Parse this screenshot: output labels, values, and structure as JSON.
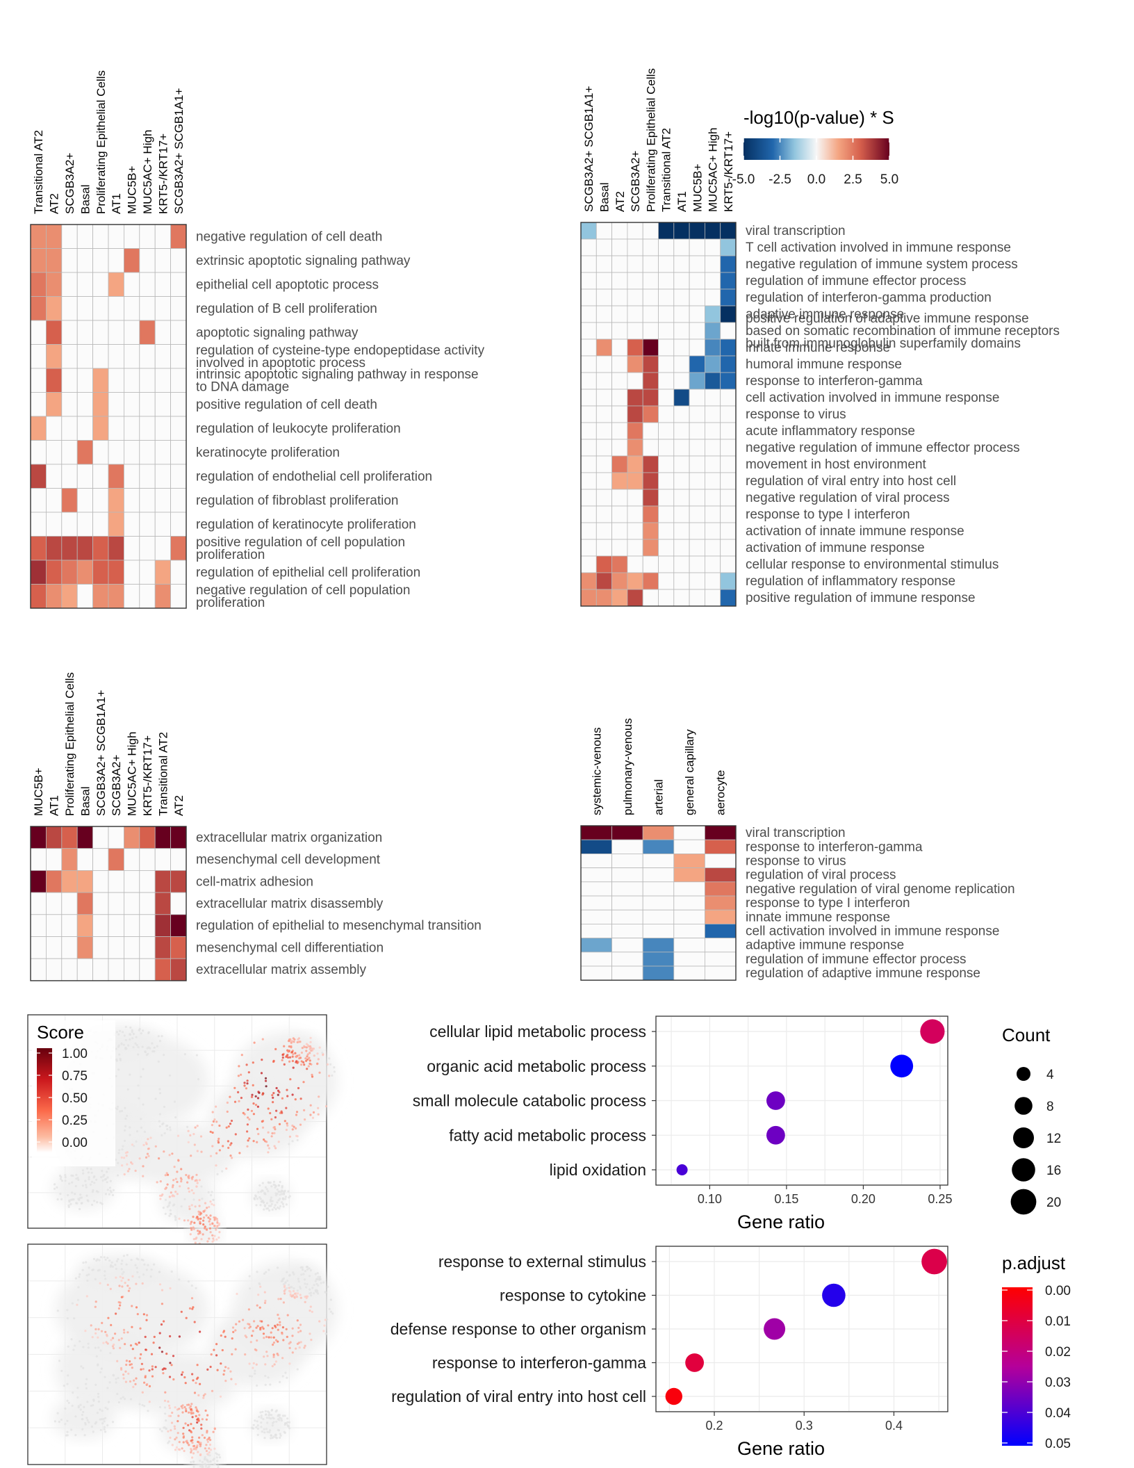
{
  "chart_data": [
    {
      "id": "hm1",
      "type": "heatmap",
      "columns": [
        "Transitional AT2",
        "AT2",
        "SCGB3A2+",
        "Basal",
        "Proliferating Epithelial Cells",
        "AT1",
        "MUC5B+",
        "MUC5AC+ High",
        "KRT5-/KRT17+",
        "SCGB3A2+ SCGB1A1+"
      ],
      "rows": [
        "negative regulation of cell death",
        "extrinsic apoptotic signaling pathway",
        "epithelial cell apoptotic process",
        "regulation of B cell proliferation",
        "apoptotic signaling pathway",
        "regulation of cysteine-type endopeptidase activity involved in apoptotic process",
        "intrinsic apoptotic signaling pathway in response to DNA damage",
        "positive regulation of cell death",
        "regulation of leukocyte proliferation",
        "keratinocyte proliferation",
        "regulation of endothelial cell proliferation",
        "regulation of fibroblast proliferation",
        "regulation of keratinocyte proliferation",
        "positive regulation of cell population proliferation",
        "regulation of epithelial cell proliferation",
        "negative regulation of cell population proliferation"
      ],
      "values": [
        [
          2,
          2,
          0,
          0,
          0,
          0,
          0,
          0,
          0,
          2.5
        ],
        [
          2,
          2,
          0,
          0,
          0,
          0,
          2.5,
          0,
          0,
          0
        ],
        [
          2.5,
          2,
          0,
          0,
          0,
          1.5,
          0,
          0,
          0,
          0
        ],
        [
          2.5,
          1.5,
          0,
          0,
          0,
          0,
          0,
          0,
          0,
          0
        ],
        [
          0,
          3,
          0,
          0,
          0,
          0,
          0,
          2.5,
          0,
          0
        ],
        [
          0,
          1.5,
          0,
          0,
          0,
          0,
          0,
          0,
          0,
          0
        ],
        [
          0,
          3,
          0,
          0,
          1.5,
          0,
          0,
          0,
          0,
          0
        ],
        [
          0,
          1.5,
          0,
          0,
          1.5,
          0,
          0,
          0,
          0,
          0
        ],
        [
          1.5,
          0,
          0,
          0,
          1.5,
          0,
          0,
          0,
          0,
          0
        ],
        [
          0,
          0,
          0,
          2.5,
          0,
          0,
          0,
          0,
          0,
          0
        ],
        [
          3.5,
          0,
          0,
          0,
          0,
          2.5,
          0,
          0,
          0,
          0
        ],
        [
          0,
          0,
          2.5,
          0,
          0,
          1.5,
          0,
          0,
          0,
          0
        ],
        [
          0,
          0,
          0,
          0,
          0,
          1.5,
          0,
          0,
          0,
          0
        ],
        [
          3,
          3.5,
          3.5,
          3.5,
          3,
          3.5,
          0,
          0,
          0,
          2.5
        ],
        [
          4,
          3,
          2.5,
          2,
          3,
          3,
          0,
          0,
          1.5,
          0
        ],
        [
          3,
          2,
          1.5,
          0,
          2,
          2,
          0,
          0,
          2,
          0
        ]
      ]
    },
    {
      "id": "hm2",
      "type": "heatmap",
      "columns": [
        "SCGB3A2+ SCGB1A1+",
        "Basal",
        "AT2",
        "SCGB3A2+",
        "Proliferating Epithelial Cells",
        "Transitional AT2",
        "AT1",
        "MUC5B+",
        "MUC5AC+ High",
        "KRT5-/KRT17+"
      ],
      "rows": [
        "viral transcription",
        "T cell activation involved in immune response",
        "negative regulation of immune system process",
        "regulation of immune effector process",
        "regulation of interferon-gamma production",
        "adaptive immune response",
        "positive regulation of adaptive immune response based on somatic recombination of immune receptors built from immunoglobulin superfamily domains",
        "innate immune response",
        "humoral immune response",
        "response to interferon-gamma",
        "cell activation involved in immune response",
        "response to virus",
        "acute inflammatory response",
        "negative regulation of immune effector process",
        "movement in host environment",
        "regulation of viral entry into host cell",
        "negative regulation of viral process",
        "response to type I interferon",
        "activation of innate immune response",
        "activation of immune response",
        "cellular response to environmental stimulus",
        "regulation of inflammatory response",
        "positive regulation of immune response"
      ],
      "values": [
        [
          -1.5,
          0,
          0,
          0,
          0,
          -5,
          -5,
          -5,
          -5,
          -5
        ],
        [
          0,
          0,
          0,
          0,
          0,
          0,
          0,
          0,
          0,
          -1.5
        ],
        [
          0,
          0,
          0,
          0,
          0,
          0,
          0,
          0,
          0,
          -3
        ],
        [
          0,
          0,
          0,
          0,
          0,
          0,
          0,
          0,
          0,
          -3
        ],
        [
          0,
          0,
          0,
          0,
          0,
          0,
          0,
          0,
          0,
          -3
        ],
        [
          0,
          0,
          0,
          0,
          0,
          0,
          0,
          0,
          -1.5,
          -5
        ],
        [
          0,
          0,
          0,
          0,
          0,
          0,
          0,
          0,
          -2,
          0
        ],
        [
          0,
          2,
          0,
          3,
          5,
          0,
          0,
          0,
          -2.5,
          -3
        ],
        [
          0,
          0,
          0,
          2,
          3.5,
          0,
          0,
          -3,
          -2,
          -3
        ],
        [
          0,
          0,
          0,
          0,
          3.5,
          0,
          0,
          -2,
          -3.5,
          -3
        ],
        [
          0,
          0,
          0,
          3.5,
          3.5,
          0,
          -4,
          0,
          0,
          0
        ],
        [
          0,
          0,
          0,
          3.5,
          2.5,
          0,
          0,
          0,
          0,
          0
        ],
        [
          0,
          0,
          0,
          2.5,
          0,
          0,
          0,
          0,
          0,
          0
        ],
        [
          0,
          0,
          0,
          2,
          0,
          0,
          0,
          0,
          0,
          0
        ],
        [
          0,
          0,
          2.5,
          1.5,
          3.5,
          0,
          0,
          0,
          0,
          0
        ],
        [
          0,
          0,
          1.5,
          1.5,
          3.5,
          0,
          0,
          0,
          0,
          0
        ],
        [
          0,
          0,
          0,
          0,
          3.5,
          0,
          0,
          0,
          0,
          0
        ],
        [
          0,
          0,
          0,
          0,
          2.5,
          0,
          0,
          0,
          0,
          0
        ],
        [
          0,
          0,
          0,
          0,
          2,
          0,
          0,
          0,
          0,
          0
        ],
        [
          0,
          0,
          0,
          0,
          2,
          0,
          0,
          0,
          0,
          0
        ],
        [
          0,
          3,
          2.5,
          0,
          0,
          0,
          0,
          0,
          0,
          0
        ],
        [
          2,
          3.5,
          2,
          1.5,
          2.5,
          0,
          0,
          0,
          0,
          -1.5
        ],
        [
          2,
          2,
          1.5,
          3.5,
          0,
          0,
          0,
          0,
          0,
          -3
        ]
      ]
    },
    {
      "id": "hm3",
      "type": "heatmap",
      "columns": [
        "MUC5B+",
        "AT1",
        "Proliferating Epithelial Cells",
        "Basal",
        "SCGB3A2+ SCGB1A1+",
        "SCGB3A2+",
        "MUC5AC+ High",
        "KRT5-/KRT17+",
        "Transitional AT2",
        "AT2"
      ],
      "rows": [
        "extracellular matrix organization",
        "mesenchymal cell development",
        "cell-matrix adhesion",
        "extracellular matrix disassembly",
        "regulation of epithelial to mesenchymal transition",
        "mesenchymal cell differentiation",
        "extracellular matrix assembly"
      ],
      "values": [
        [
          5,
          3.5,
          3,
          5,
          0,
          0,
          2,
          3,
          5,
          5
        ],
        [
          0,
          0,
          2,
          0,
          0,
          2.5,
          0,
          0,
          0,
          0
        ],
        [
          5,
          2.5,
          1.5,
          1.5,
          0,
          0,
          0,
          0,
          3.5,
          3.5
        ],
        [
          0,
          0,
          0,
          2.5,
          0,
          0,
          0,
          0,
          3.5,
          0
        ],
        [
          0,
          0,
          0,
          1.5,
          0,
          0,
          0,
          0,
          4,
          5
        ],
        [
          0,
          0,
          0,
          2,
          0,
          0,
          0,
          0,
          3.5,
          3
        ],
        [
          0,
          0,
          0,
          0,
          0,
          0,
          0,
          0,
          3,
          3.5
        ]
      ]
    },
    {
      "id": "hm4",
      "type": "heatmap",
      "columns": [
        "systemic-venous",
        "pulmonary-venous",
        "arterial",
        "general capillary",
        "aerocyte"
      ],
      "rows": [
        "viral transcription",
        "response to interferon-gamma",
        "response to virus",
        "regulation of viral process",
        "negative regulation of viral genome replication",
        "response to type I interferon",
        "innate immune response",
        "cell activation involved in immune response",
        "adaptive immune response",
        "regulation of immune effector process",
        "regulation of adaptive immune response"
      ],
      "values": [
        [
          5,
          5,
          2,
          0,
          5
        ],
        [
          -4,
          0,
          -2.5,
          0,
          3
        ],
        [
          0,
          0,
          0,
          1.5,
          0
        ],
        [
          0,
          0,
          0,
          1.5,
          3.5
        ],
        [
          0,
          0,
          0,
          0,
          2.5
        ],
        [
          0,
          0,
          0,
          0,
          2
        ],
        [
          0,
          0,
          0,
          0,
          1.5
        ],
        [
          0,
          0,
          0,
          0,
          -3
        ],
        [
          -2,
          0,
          -2.5,
          0,
          0
        ],
        [
          0,
          0,
          -2.5,
          0,
          0
        ],
        [
          0,
          0,
          -2.5,
          0,
          0
        ]
      ]
    },
    {
      "id": "dot1",
      "type": "scatter",
      "categories": [
        "cellular lipid metabolic process",
        "organic acid metabolic process",
        "small molecule catabolic process",
        "fatty acid metabolic process",
        "lipid oxidation"
      ],
      "x": [
        0.245,
        0.225,
        0.143,
        0.143,
        0.082
      ],
      "count": [
        18,
        15,
        9,
        9,
        2
      ],
      "p_adjust": [
        0.015,
        0.05,
        0.035,
        0.035,
        0.04
      ],
      "xlabel": "Gene ratio",
      "xlim": [
        0.065,
        0.255
      ],
      "xticks": [
        "0.10",
        "0.15",
        "0.20",
        "0.25"
      ]
    },
    {
      "id": "dot2",
      "type": "scatter",
      "categories": [
        "response to external stimulus",
        "response to cytokine",
        "defense response to other organism",
        "response to interferon-gamma",
        "regulation of viral entry into host cell"
      ],
      "x": [
        0.445,
        0.333,
        0.267,
        0.178,
        0.155
      ],
      "count": [
        20,
        16,
        13,
        9,
        7
      ],
      "p_adjust": [
        0.012,
        0.045,
        0.028,
        0.01,
        0.002
      ],
      "xlabel": "Gene ratio",
      "xlim": [
        0.135,
        0.46
      ],
      "xticks": [
        "0.2",
        "0.3",
        "0.4"
      ]
    }
  ],
  "heatmap_legend": {
    "title": "-log10(p-value) * S",
    "ticks": [
      "-5.0",
      "-2.5",
      "0.0",
      "2.5",
      "5.0"
    ],
    "range": [
      -5,
      5
    ]
  },
  "umap_legend": {
    "title": "Score",
    "ticks": [
      "1.00",
      "0.75",
      "0.50",
      "0.25",
      "0.00"
    ]
  },
  "count_legend": {
    "title": "Count",
    "ticks": [
      "4",
      "8",
      "12",
      "16",
      "20"
    ]
  },
  "padjust_legend": {
    "title": "p.adjust",
    "ticks": [
      "0.00",
      "0.01",
      "0.02",
      "0.03",
      "0.04",
      "0.05"
    ],
    "range": [
      0,
      0.05
    ]
  },
  "colors": {
    "neg_dark": "#053061",
    "neg_mid": "#4393c3",
    "neg_light": "#d1e5f0",
    "zero": "#f7f7f7",
    "pos_light": "#fddbc7",
    "pos_mid": "#d6604d",
    "pos_dark": "#67001f",
    "padj_low": "#ff0000",
    "padj_high": "#0000ff",
    "score_high": "#67000d",
    "score_mid": "#ef3b2c",
    "score_low": "#ffffff"
  }
}
